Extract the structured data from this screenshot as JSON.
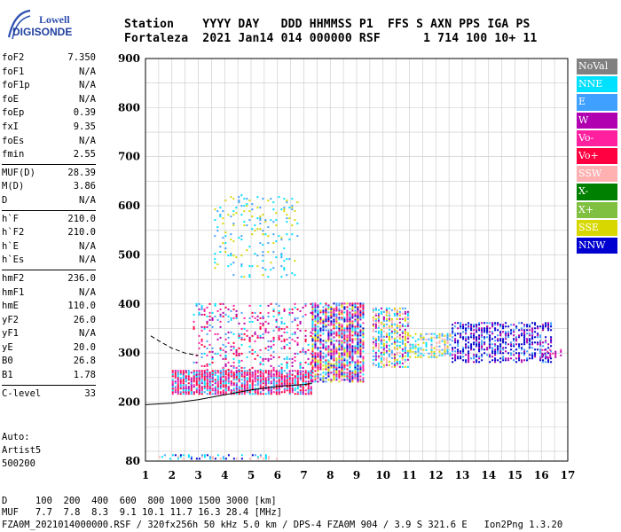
{
  "brand": {
    "line1": "Lowell",
    "line2": "DIGISONDE"
  },
  "header": {
    "line1": "Station    YYYY DAY   DDD HHMMSS P1  FFS S AXN PPS IGA PS",
    "line2": "Fortaleza  2021 Jan14 014 000000 RSF      1 714 100 10+ 11"
  },
  "params": {
    "groups": [
      [
        {
          "k": "foF2",
          "v": "7.350"
        },
        {
          "k": "foF1",
          "v": "N/A"
        },
        {
          "k": "foF1p",
          "v": "N/A"
        },
        {
          "k": "foE",
          "v": "N/A"
        },
        {
          "k": "foEp",
          "v": "0.39"
        },
        {
          "k": "fxI",
          "v": "9.35"
        },
        {
          "k": "foEs",
          "v": "N/A"
        },
        {
          "k": "fmin",
          "v": "2.55"
        }
      ],
      [
        {
          "k": "MUF(D)",
          "v": "28.39"
        },
        {
          "k": "M(D)",
          "v": "3.86"
        },
        {
          "k": "D",
          "v": "N/A"
        }
      ],
      [
        {
          "k": "h`F",
          "v": "210.0"
        },
        {
          "k": "h`F2",
          "v": "210.0"
        },
        {
          "k": "h`E",
          "v": "N/A"
        },
        {
          "k": "h`Es",
          "v": "N/A"
        }
      ],
      [
        {
          "k": "hmF2",
          "v": "236.0"
        },
        {
          "k": "hmF1",
          "v": "N/A"
        },
        {
          "k": "hmE",
          "v": "110.0"
        },
        {
          "k": "yF2",
          "v": "26.0"
        },
        {
          "k": "yF1",
          "v": "N/A"
        },
        {
          "k": "yE",
          "v": "20.0"
        },
        {
          "k": "B0",
          "v": "26.8"
        },
        {
          "k": "B1",
          "v": "1.78"
        }
      ],
      [
        {
          "k": "C-level",
          "v": "33"
        }
      ]
    ]
  },
  "auto": {
    "line1": "Auto:",
    "line2": "Artist5",
    "line3": "500200"
  },
  "footer": {
    "d_line": "D     100  200  400  600  800 1000 1500 3000 [km]",
    "muf_line": "MUF   7.7  7.8  8.3  9.1 10.1 11.7 16.3 28.4 [MHz]",
    "source_line": "FZA0M_2021014000000.RSF / 320fx256h 50 kHz 5.0 km / DPS-4 FZA0M 904 / 3.9 S 321.6 E   Ion2Png 1.3.20"
  },
  "legend": [
    {
      "label": "NoVal",
      "color": "#808080"
    },
    {
      "label": "NNE",
      "color": "#00e0ff"
    },
    {
      "label": "E",
      "color": "#40a0ff"
    },
    {
      "label": "W",
      "color": "#b000b0"
    },
    {
      "label": "Vo-",
      "color": "#ff20a0"
    },
    {
      "label": "Vo+",
      "color": "#ff0040"
    },
    {
      "label": "SSW",
      "color": "#ffb0b0"
    },
    {
      "label": "X-",
      "color": "#008000"
    },
    {
      "label": "X+",
      "color": "#80c040"
    },
    {
      "label": "SSE",
      "color": "#d8d800"
    },
    {
      "label": "NNW",
      "color": "#0000d0"
    }
  ],
  "chart_data": {
    "type": "scatter",
    "xlim": [
      1,
      17
    ],
    "ylim": [
      80,
      900
    ],
    "x_ticks": [
      1,
      2,
      3,
      4,
      5,
      6,
      7,
      8,
      9,
      10,
      11,
      12,
      13,
      14,
      15,
      16,
      17
    ],
    "y_ticks": [
      80,
      200,
      300,
      400,
      500,
      600,
      700,
      800,
      900
    ],
    "grid": true,
    "profile_solid": {
      "x": [
        1.0,
        2.0,
        3.0,
        4.0,
        5.0,
        6.0,
        7.0,
        7.3
      ],
      "y": [
        195,
        198,
        205,
        215,
        225,
        232,
        236,
        238
      ]
    },
    "profile_dashed": {
      "x": [
        1.2,
        1.5,
        2.0,
        2.5,
        3.0
      ],
      "y": [
        335,
        325,
        310,
        300,
        295
      ]
    },
    "regions": [
      {
        "x": [
          2.0,
          7.3
        ],
        "y": [
          215,
          265
        ],
        "density": 0.85,
        "colors": [
          "#ff0040",
          "#ff20a0",
          "#b000b0",
          "#40a0ff",
          "#00e0ff",
          "#ff0040"
        ]
      },
      {
        "x": [
          2.8,
          7.3
        ],
        "y": [
          250,
          400
        ],
        "density": 0.22,
        "colors": [
          "#40a0ff",
          "#00e0ff",
          "#b000b0",
          "#ff20a0",
          "#ff0040"
        ]
      },
      {
        "x": [
          3.6,
          6.8
        ],
        "y": [
          450,
          620
        ],
        "density": 0.1,
        "colors": [
          "#d8d800",
          "#00e0ff",
          "#40a0ff"
        ]
      },
      {
        "x": [
          7.3,
          9.3
        ],
        "y": [
          240,
          400
        ],
        "density": 0.75,
        "colors": [
          "#b000b0",
          "#0000d0",
          "#ff0040",
          "#40a0ff",
          "#00e0ff",
          "#ff20a0",
          "#d8d800"
        ]
      },
      {
        "x": [
          9.6,
          11.0
        ],
        "y": [
          270,
          390
        ],
        "density": 0.65,
        "colors": [
          "#00e0ff",
          "#40a0ff",
          "#ffb0b0",
          "#d8d800",
          "#b000b0"
        ]
      },
      {
        "x": [
          11.0,
          12.6
        ],
        "y": [
          290,
          340
        ],
        "density": 0.55,
        "colors": [
          "#00e0ff",
          "#d8d800",
          "#40a0ff",
          "#ffb0b0"
        ]
      },
      {
        "x": [
          12.6,
          16.4
        ],
        "y": [
          280,
          360
        ],
        "density": 0.55,
        "colors": [
          "#0000d0",
          "#b000b0",
          "#40a0ff",
          "#0000d0"
        ]
      },
      {
        "x": [
          16.0,
          16.8
        ],
        "y": [
          290,
          305
        ],
        "density": 0.5,
        "colors": [
          "#b000b0",
          "#ff20a0"
        ]
      },
      {
        "x": [
          1.5,
          6.0
        ],
        "y": [
          83,
          92
        ],
        "density": 0.35,
        "colors": [
          "#0000d0",
          "#40a0ff",
          "#ffb0b0",
          "#00e0ff"
        ]
      }
    ]
  }
}
